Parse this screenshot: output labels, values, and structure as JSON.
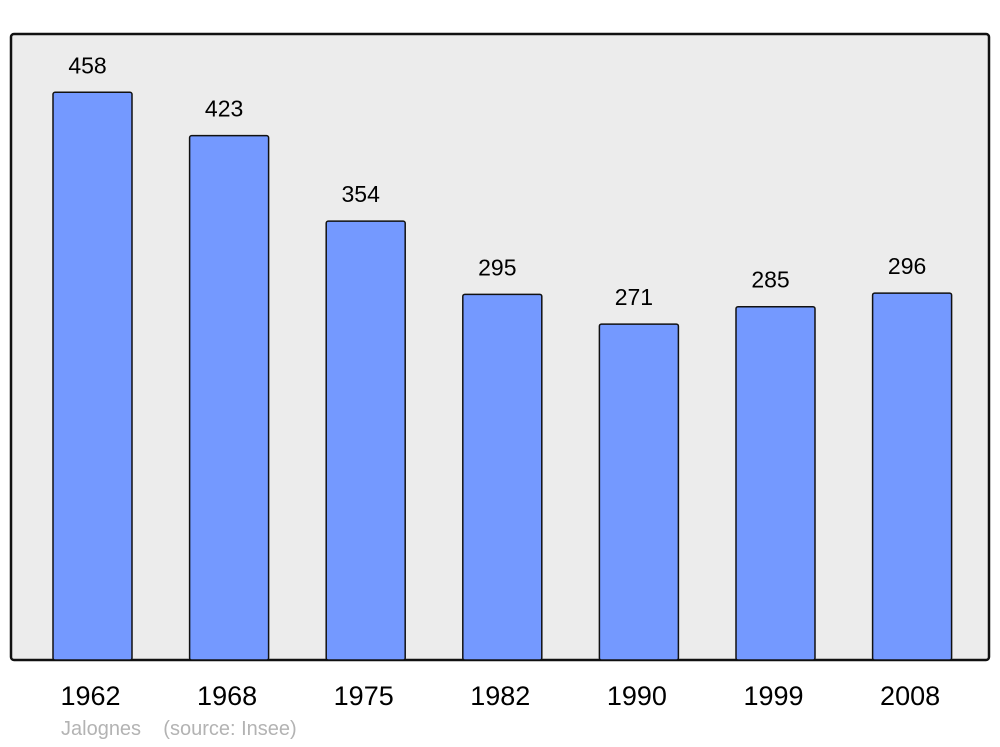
{
  "chart_data": {
    "type": "bar",
    "categories": [
      "1962",
      "1968",
      "1975",
      "1982",
      "1990",
      "1999",
      "2008"
    ],
    "values": [
      458,
      423,
      354,
      295,
      271,
      285,
      296
    ],
    "ylim": [
      0,
      505
    ],
    "grid": false,
    "bar_color": "#7499ff",
    "plot_background": "#ececec",
    "data_labels": true
  },
  "footer": {
    "place": "Jalognes",
    "source": "(source: Insee)"
  }
}
